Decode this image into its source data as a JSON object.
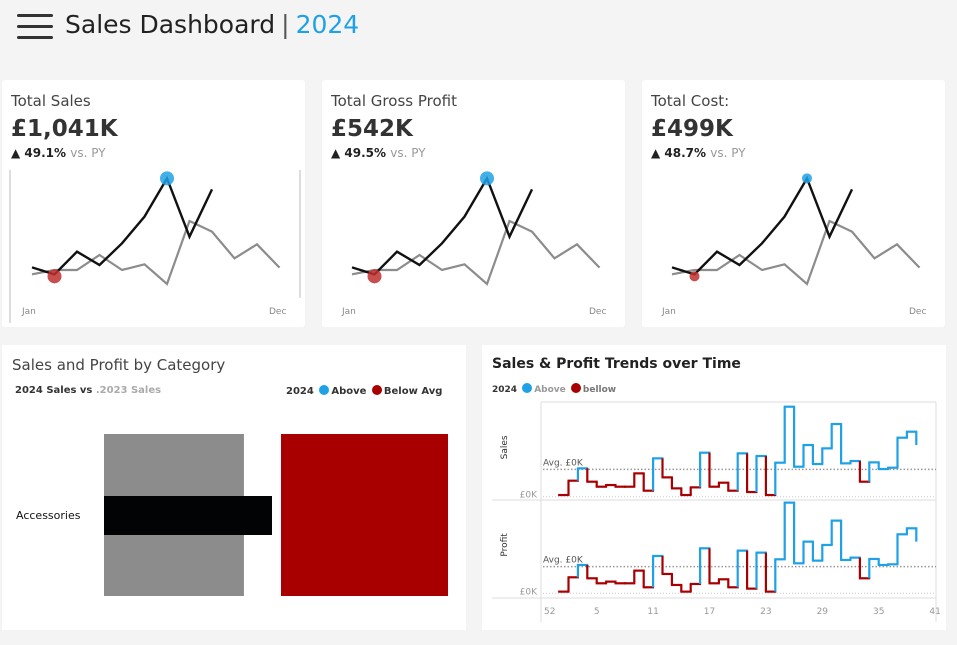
{
  "header": {
    "title": "Sales Dashboard",
    "separator": "|",
    "year": "2024",
    "menu_icon": "hamburger-menu-icon"
  },
  "colors": {
    "accent": "#1ea1e6",
    "above": "#1ea1e6",
    "below": "#a80000",
    "current_year": "#111111",
    "prior_year": "#8c8c8c"
  },
  "kpis": [
    {
      "title": "Total Sales",
      "value": "£1,041K",
      "delta": "49.1%",
      "vs": "vs. PY",
      "arrow": "▲"
    },
    {
      "title": "Total Gross Profit",
      "value": "£542K",
      "delta": "49.5%",
      "vs": "vs. PY",
      "arrow": "▲"
    },
    {
      "title": "Total Cost:",
      "value": "£499K",
      "delta": "48.7%",
      "vs": "vs. PY",
      "arrow": "▲"
    }
  ],
  "sparkline": {
    "x_start": "Jan",
    "x_end": "Dec",
    "prior_year": [
      67,
      80,
      80,
      125,
      80,
      97,
      38,
      227,
      195,
      115,
      157,
      87
    ],
    "current_year": [
      88,
      67,
      135,
      95,
      160,
      240,
      355,
      180,
      322
    ]
  },
  "category_panel": {
    "title": "Sales and Profit by Category",
    "subtitle_2024": "2024 Sales vs ",
    "subtitle_2023": ".2023 Sales",
    "legend": {
      "year": "2024",
      "above": "Above",
      "below": "Below Avg"
    },
    "categories": [
      {
        "name": "Accessories",
        "sales_2024_fraction": 1.0,
        "sales_2023_fraction": 0.833,
        "profit_fraction": 1.0,
        "status": "below"
      }
    ]
  },
  "trend_panel": {
    "title": "Sales & Profit Trends over Time",
    "legend": {
      "year": "2024",
      "above": "Above",
      "below": "bellow"
    },
    "panes": [
      {
        "label": "Sales",
        "avg_label": "Avg. £0K",
        "zero_label": "£0K",
        "avg": 82,
        "values": [
          5,
          48,
          85,
          45,
          30,
          35,
          30,
          30,
          70,
          18,
          115,
          58,
          25,
          5,
          28,
          132,
          30,
          42,
          18,
          130,
          14,
          122,
          5,
          102,
          270,
          90,
          155,
          98,
          145,
          218,
          100,
          107,
          45,
          103,
          83,
          87,
          177,
          195,
          155
        ]
      },
      {
        "label": "Profit",
        "avg_label": "Avg. £0K",
        "zero_label": "£0K",
        "avg": 80,
        "values": [
          5,
          48,
          85,
          45,
          30,
          35,
          30,
          30,
          68,
          18,
          112,
          58,
          25,
          5,
          28,
          135,
          30,
          42,
          18,
          128,
          14,
          122,
          5,
          102,
          272,
          90,
          155,
          98,
          145,
          218,
          100,
          107,
          45,
          103,
          85,
          87,
          177,
          195,
          155
        ]
      }
    ],
    "first_week": 1,
    "x_ticks": [
      "52",
      "5",
      "11",
      "17",
      "23",
      "29",
      "35",
      "41"
    ]
  }
}
